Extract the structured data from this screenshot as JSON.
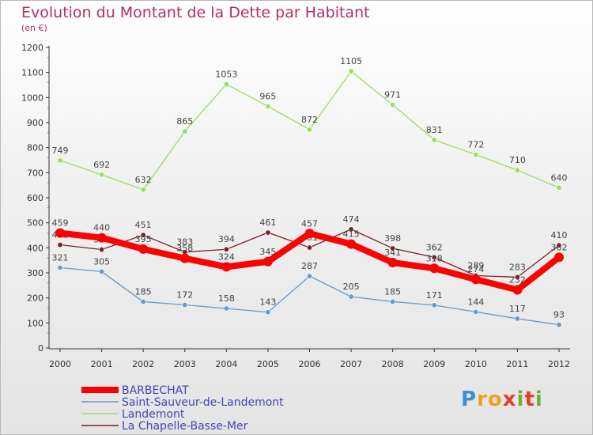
{
  "chart_data": {
    "type": "line",
    "title": "Evolution du Montant de la Dette par Habitant",
    "subtitle": "(en €)",
    "x": [
      "2000",
      "2001",
      "2002",
      "2003",
      "2004",
      "2005",
      "2006",
      "2007",
      "2008",
      "2009",
      "2010",
      "2011",
      "2012"
    ],
    "ylim": [
      0,
      1200
    ],
    "yticks": [
      0,
      100,
      200,
      300,
      400,
      500,
      600,
      700,
      800,
      900,
      1000,
      1100,
      1200
    ],
    "grid": false,
    "legend_position": "bottom-left",
    "series": [
      {
        "name": "BARBECHAT",
        "color": "#ff0000",
        "values": [
          459,
          440,
          395,
          358,
          324,
          345,
          457,
          415,
          341,
          318,
          274,
          232,
          362
        ]
      },
      {
        "name": "Saint-Sauveur-de-Landemont",
        "color": "#6699cc",
        "values": [
          321,
          305,
          185,
          172,
          158,
          143,
          287,
          205,
          185,
          171,
          144,
          117,
          93
        ]
      },
      {
        "name": "Landemont",
        "color": "#99dd66",
        "values": [
          749,
          692,
          632,
          865,
          1053,
          965,
          872,
          1105,
          971,
          831,
          772,
          710,
          640
        ]
      },
      {
        "name": "La Chapelle-Basse-Mer",
        "color": "#772222",
        "values": [
          412,
          393,
          451,
          383,
          394,
          461,
          401,
          474,
          398,
          362,
          289,
          283,
          410
        ]
      }
    ]
  },
  "logo": {
    "letters": [
      "P",
      "r",
      "o",
      "x",
      "i",
      "t",
      "i"
    ],
    "colors": [
      "#3f8fd6",
      "#f0a020",
      "#f0a020",
      "#e0402a",
      "#70b030",
      "#e0402a",
      "#70b030"
    ]
  }
}
